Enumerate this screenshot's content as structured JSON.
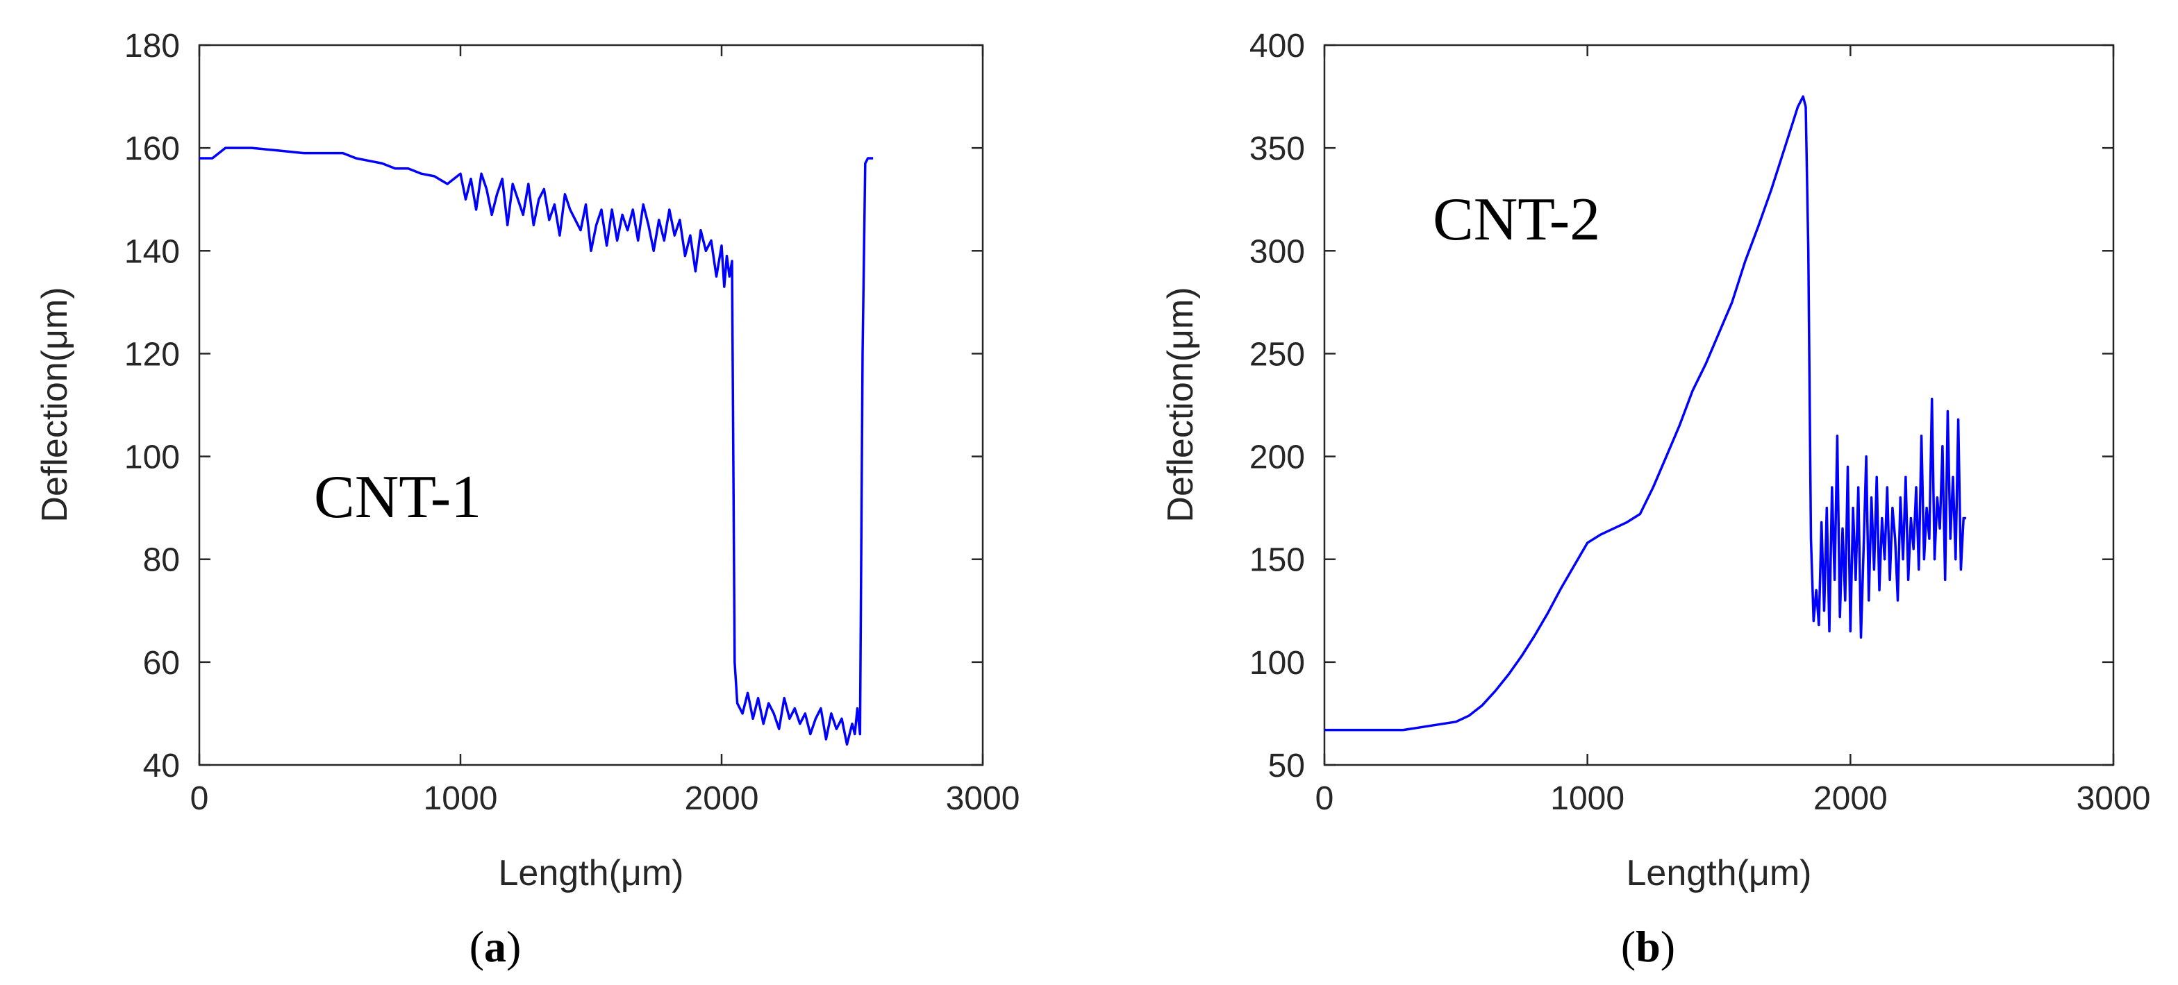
{
  "chart_data": [
    {
      "type": "line",
      "panel_id": "a",
      "caption_open": "(",
      "caption_letter": "a",
      "caption_close": ")",
      "annotation": "CNT-1",
      "xlabel": "Length(μm)",
      "ylabel": "Deflection(μm)",
      "xlim": [
        0,
        3000
      ],
      "ylim": [
        40,
        180
      ],
      "xticks": [
        0,
        1000,
        2000,
        3000
      ],
      "yticks": [
        40,
        60,
        80,
        100,
        120,
        140,
        160,
        180
      ],
      "line_color": "#0000ff",
      "series": [
        {
          "name": "CNT-1",
          "x": [
            0,
            50,
            100,
            200,
            300,
            400,
            500,
            550,
            600,
            650,
            700,
            750,
            800,
            850,
            900,
            950,
            1000,
            1020,
            1040,
            1060,
            1080,
            1100,
            1120,
            1140,
            1160,
            1180,
            1200,
            1220,
            1240,
            1260,
            1280,
            1300,
            1320,
            1340,
            1360,
            1380,
            1400,
            1420,
            1440,
            1460,
            1480,
            1500,
            1520,
            1540,
            1560,
            1580,
            1600,
            1620,
            1640,
            1660,
            1680,
            1700,
            1720,
            1740,
            1760,
            1780,
            1800,
            1820,
            1840,
            1860,
            1880,
            1900,
            1920,
            1940,
            1960,
            1980,
            2000,
            2010,
            2020,
            2030,
            2040,
            2050,
            2060,
            2080,
            2100,
            2120,
            2140,
            2160,
            2180,
            2200,
            2220,
            2240,
            2260,
            2280,
            2300,
            2320,
            2340,
            2360,
            2380,
            2400,
            2420,
            2440,
            2460,
            2480,
            2500,
            2510,
            2520,
            2530,
            2540,
            2550,
            2560,
            2580
          ],
          "y": [
            158,
            158,
            160,
            160,
            159.5,
            159,
            159,
            159,
            158,
            157.5,
            157,
            156,
            156,
            155,
            154.5,
            153,
            155,
            150,
            154,
            148,
            155,
            152,
            147,
            151,
            154,
            145,
            153,
            150,
            147,
            153,
            145,
            150,
            152,
            146,
            149,
            143,
            151,
            148,
            146,
            144,
            149,
            140,
            145,
            148,
            141,
            148,
            142,
            147,
            144,
            148,
            142,
            149,
            145,
            140,
            146,
            142,
            148,
            143,
            146,
            139,
            143,
            136,
            144,
            140,
            142,
            135,
            141,
            133,
            139,
            135,
            138,
            60,
            52,
            50,
            54,
            49,
            53,
            48,
            52,
            50,
            47,
            53,
            49,
            51,
            48,
            50,
            46,
            49,
            51,
            45,
            50,
            47,
            49,
            44,
            48,
            46,
            51,
            46,
            120,
            157,
            158,
            158
          ]
        }
      ]
    },
    {
      "type": "line",
      "panel_id": "b",
      "caption_open": "(",
      "caption_letter": "b",
      "caption_close": ")",
      "annotation": "CNT-2",
      "xlabel": "Length(μm)",
      "ylabel": "Deflection(μm)",
      "xlim": [
        0,
        3000
      ],
      "ylim": [
        50,
        400
      ],
      "xticks": [
        0,
        1000,
        2000,
        3000
      ],
      "yticks": [
        50,
        100,
        150,
        200,
        250,
        300,
        350,
        400
      ],
      "line_color": "#0000ff",
      "series": [
        {
          "name": "CNT-2",
          "x": [
            0,
            100,
            200,
            300,
            350,
            400,
            500,
            550,
            600,
            650,
            700,
            750,
            800,
            850,
            900,
            950,
            1000,
            1050,
            1100,
            1150,
            1200,
            1250,
            1300,
            1350,
            1400,
            1450,
            1500,
            1550,
            1600,
            1650,
            1700,
            1750,
            1800,
            1820,
            1830,
            1840,
            1850,
            1860,
            1870,
            1880,
            1890,
            1900,
            1910,
            1920,
            1930,
            1940,
            1950,
            1960,
            1970,
            1980,
            1990,
            2000,
            2010,
            2020,
            2030,
            2040,
            2050,
            2060,
            2070,
            2080,
            2090,
            2100,
            2110,
            2120,
            2130,
            2140,
            2150,
            2160,
            2170,
            2180,
            2190,
            2200,
            2210,
            2220,
            2230,
            2240,
            2250,
            2260,
            2270,
            2280,
            2290,
            2300,
            2310,
            2320,
            2330,
            2340,
            2350,
            2360,
            2370,
            2380,
            2390,
            2400,
            2410,
            2420,
            2430,
            2440
          ],
          "y": [
            67,
            67,
            67,
            67,
            68,
            69,
            71,
            74,
            79,
            86,
            94,
            103,
            113,
            124,
            136,
            147,
            158,
            162,
            165,
            168,
            172,
            185,
            200,
            215,
            232,
            245,
            260,
            275,
            295,
            312,
            330,
            350,
            370,
            375,
            370,
            300,
            160,
            120,
            135,
            118,
            168,
            125,
            175,
            115,
            185,
            140,
            210,
            122,
            165,
            130,
            195,
            115,
            175,
            140,
            185,
            112,
            155,
            200,
            130,
            180,
            145,
            190,
            135,
            170,
            150,
            185,
            140,
            175,
            160,
            130,
            180,
            150,
            190,
            140,
            170,
            155,
            185,
            145,
            210,
            150,
            175,
            160,
            228,
            150,
            180,
            165,
            205,
            140,
            222,
            160,
            190,
            150,
            218,
            145,
            170,
            170
          ]
        }
      ]
    }
  ]
}
